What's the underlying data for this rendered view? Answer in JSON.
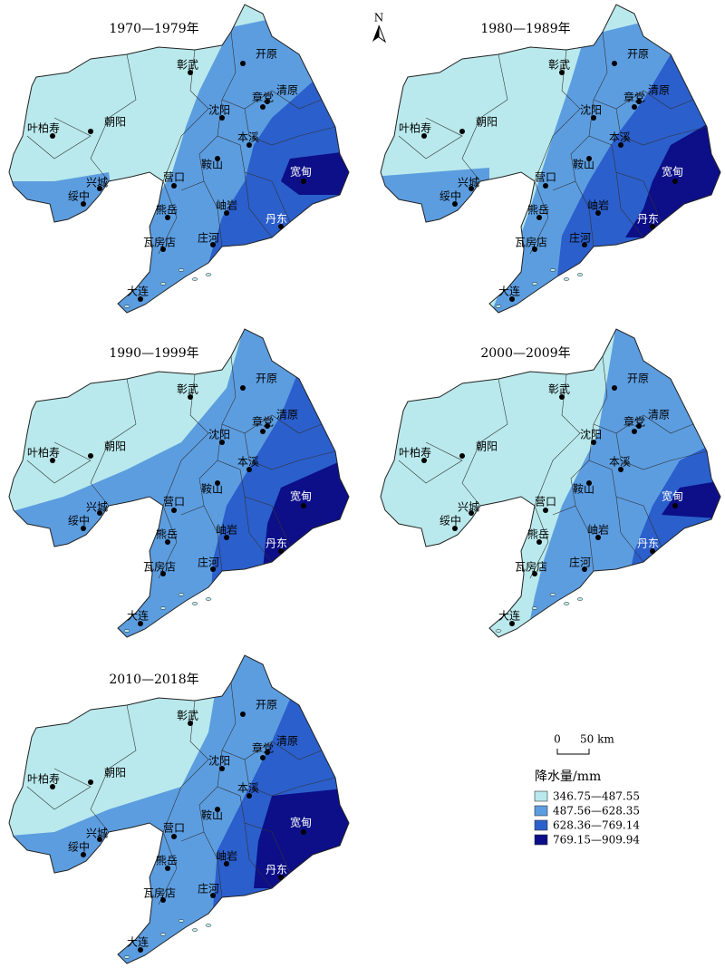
{
  "north": "N",
  "scale": {
    "zero": "0",
    "distance": "50 km"
  },
  "legend": {
    "title": "降水量/mm",
    "items": [
      {
        "label": "346.75—487.55",
        "color": "#b9e9ec"
      },
      {
        "label": "487.56—628.35",
        "color": "#5c9de0"
      },
      {
        "label": "628.36—769.14",
        "color": "#2b5fcc"
      },
      {
        "label": "769.15—909.94",
        "color": "#0c0f88"
      }
    ]
  },
  "cities": [
    "彰武",
    "开原",
    "清原",
    "章党",
    "沈阳",
    "叶柏寿",
    "朝阳",
    "本溪",
    "鞍山",
    "营口",
    "兴城",
    "绥中",
    "宽甸",
    "熊岳",
    "岫岩",
    "丹东",
    "庄河",
    "瓦房店",
    "大连"
  ],
  "panels": [
    {
      "title": "1970—1979年"
    },
    {
      "title": "1980—1989年"
    },
    {
      "title": "1990—1999年"
    },
    {
      "title": "2000—2009年"
    },
    {
      "title": "2010—2018年"
    }
  ]
}
